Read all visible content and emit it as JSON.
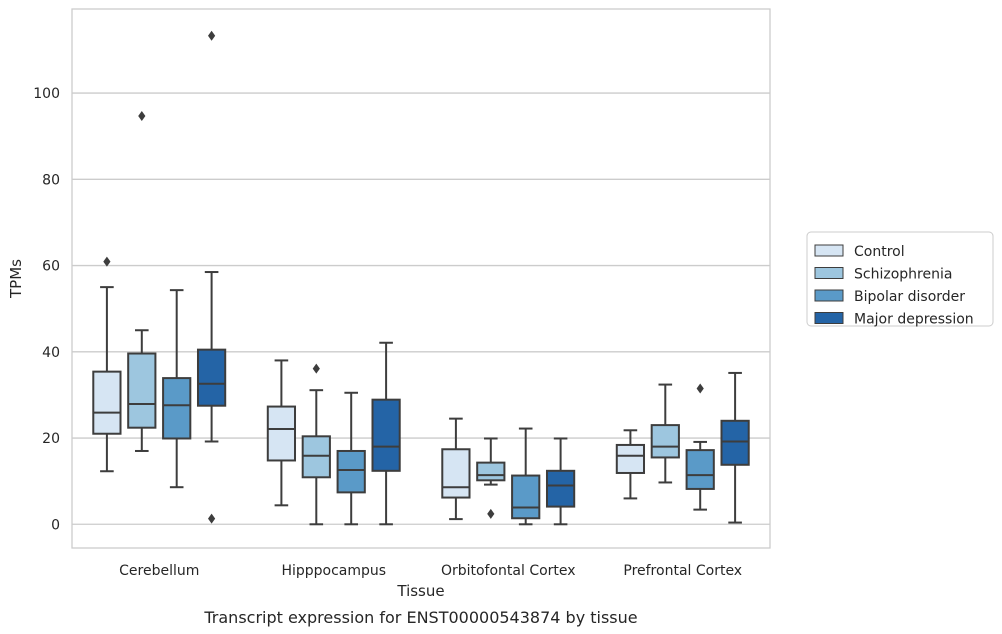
{
  "chart_data": {
    "type": "box",
    "caption": "Transcript expression for ENST00000543874 by tissue",
    "xlabel": "Tissue",
    "ylabel": "TPMs",
    "ylim": [
      -5.5,
      119.5
    ],
    "yticks": [
      0,
      20,
      40,
      60,
      80,
      100
    ],
    "grid": true,
    "legend_position": "right",
    "categories": [
      "Cerebellum",
      "Hipppocampus",
      "Orbitofontal Cortex",
      "Prefrontal Cortex"
    ],
    "series": [
      {
        "name": "Control",
        "color": "#d6e5f3",
        "boxes": [
          {
            "whislo": 12.3,
            "q1": 21.0,
            "med": 25.9,
            "q3": 35.4,
            "whishi": 55.0,
            "fliers": [
              60.9
            ]
          },
          {
            "whislo": 4.4,
            "q1": 14.8,
            "med": 22.1,
            "q3": 27.3,
            "whishi": 38.0,
            "fliers": []
          },
          {
            "whislo": 1.2,
            "q1": 6.2,
            "med": 8.6,
            "q3": 17.4,
            "whishi": 24.5,
            "fliers": []
          },
          {
            "whislo": 6.0,
            "q1": 11.9,
            "med": 15.9,
            "q3": 18.4,
            "whishi": 21.8,
            "fliers": []
          }
        ]
      },
      {
        "name": "Schizophrenia",
        "color": "#9dc6df",
        "boxes": [
          {
            "whislo": 17.0,
            "q1": 22.4,
            "med": 27.9,
            "q3": 39.6,
            "whishi": 45.0,
            "fliers": [
              94.7
            ]
          },
          {
            "whislo": 0.0,
            "q1": 10.9,
            "med": 15.9,
            "q3": 20.4,
            "whishi": 31.1,
            "fliers": [
              36.1
            ]
          },
          {
            "whislo": 9.2,
            "q1": 10.2,
            "med": 11.4,
            "q3": 14.3,
            "whishi": 19.9,
            "fliers": [
              2.4
            ]
          },
          {
            "whislo": 9.7,
            "q1": 15.5,
            "med": 18.0,
            "q3": 23.0,
            "whishi": 32.4,
            "fliers": []
          }
        ]
      },
      {
        "name": "Bipolar disorder",
        "color": "#5a9ac8",
        "boxes": [
          {
            "whislo": 8.6,
            "q1": 19.9,
            "med": 27.6,
            "q3": 33.9,
            "whishi": 54.3,
            "fliers": []
          },
          {
            "whislo": 0.0,
            "q1": 7.4,
            "med": 12.6,
            "q3": 17.0,
            "whishi": 30.5,
            "fliers": []
          },
          {
            "whislo": 0.0,
            "q1": 1.4,
            "med": 3.9,
            "q3": 11.3,
            "whishi": 22.2,
            "fliers": []
          },
          {
            "whislo": 3.4,
            "q1": 8.2,
            "med": 11.4,
            "q3": 17.2,
            "whishi": 19.1,
            "fliers": [
              31.5
            ]
          }
        ]
      },
      {
        "name": "Major depression",
        "color": "#2464a6",
        "boxes": [
          {
            "whislo": 19.2,
            "q1": 27.5,
            "med": 32.6,
            "q3": 40.5,
            "whishi": 58.5,
            "fliers": [
              113.3,
              1.3
            ]
          },
          {
            "whislo": 0.0,
            "q1": 12.4,
            "med": 18.0,
            "q3": 28.9,
            "whishi": 42.1,
            "fliers": []
          },
          {
            "whislo": 0.0,
            "q1": 4.1,
            "med": 9.0,
            "q3": 12.4,
            "whishi": 19.9,
            "fliers": []
          },
          {
            "whislo": 0.4,
            "q1": 13.8,
            "med": 19.2,
            "q3": 24.0,
            "whishi": 35.1,
            "fliers": []
          }
        ]
      }
    ]
  }
}
